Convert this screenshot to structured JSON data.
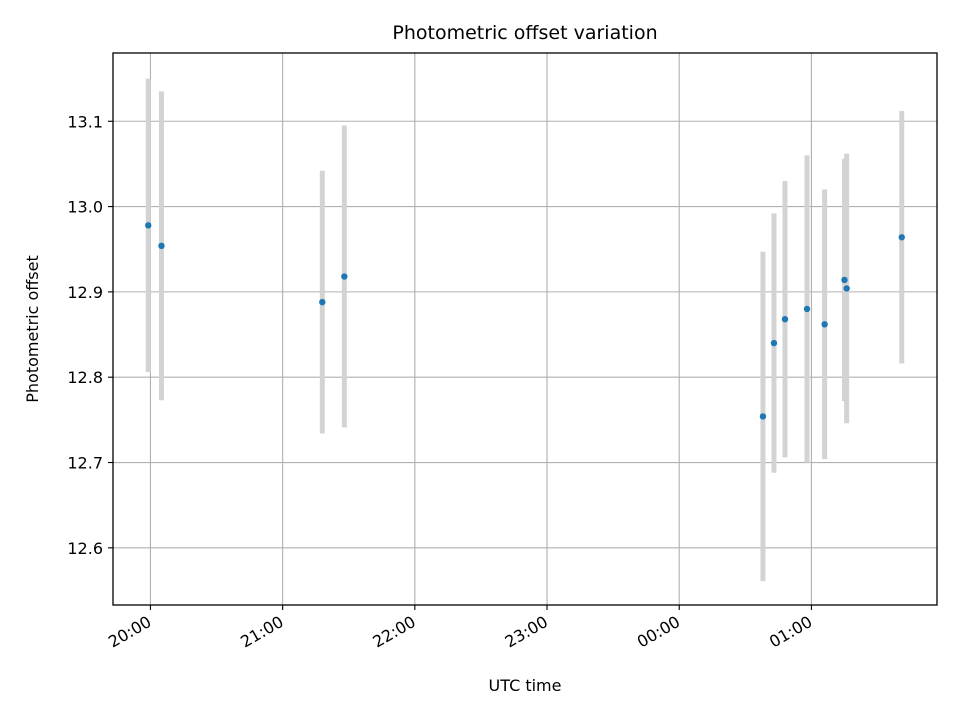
{
  "chart_data": {
    "type": "scatter",
    "title": "Photometric offset variation",
    "xlabel": "UTC time",
    "ylabel": "Photometric offset",
    "grid": true,
    "xlim": [
      "19:43",
      "21:57+4:00"
    ],
    "x_ticks": [
      "20:00",
      "21:00",
      "22:00",
      "23:00",
      "00:00",
      "01:00"
    ],
    "y_ticks": [
      12.6,
      12.7,
      12.8,
      12.9,
      13.0,
      13.1
    ],
    "ylim": [
      12.533,
      13.18
    ],
    "series": [
      {
        "points": [
          {
            "x": "19:59",
            "y": 12.978,
            "err": 0.172
          },
          {
            "x": "20:05",
            "y": 12.954,
            "err": 0.181
          },
          {
            "x": "21:18",
            "y": 12.888,
            "err": 0.154
          },
          {
            "x": "21:28",
            "y": 12.918,
            "err": 0.177
          },
          {
            "x": "00:38",
            "y": 12.754,
            "err": 0.193
          },
          {
            "x": "00:43",
            "y": 12.84,
            "err": 0.152
          },
          {
            "x": "00:48",
            "y": 12.868,
            "err": 0.162
          },
          {
            "x": "00:58",
            "y": 12.88,
            "err": 0.18
          },
          {
            "x": "01:06",
            "y": 12.862,
            "err": 0.158
          },
          {
            "x": "01:15",
            "y": 12.914,
            "err": 0.142
          },
          {
            "x": "01:16",
            "y": 12.904,
            "err": 0.158
          },
          {
            "x": "01:41",
            "y": 12.964,
            "err": 0.148
          }
        ],
        "marker_color": "#1f77b4",
        "errorbar_color": "#d3d3d3"
      }
    ]
  }
}
